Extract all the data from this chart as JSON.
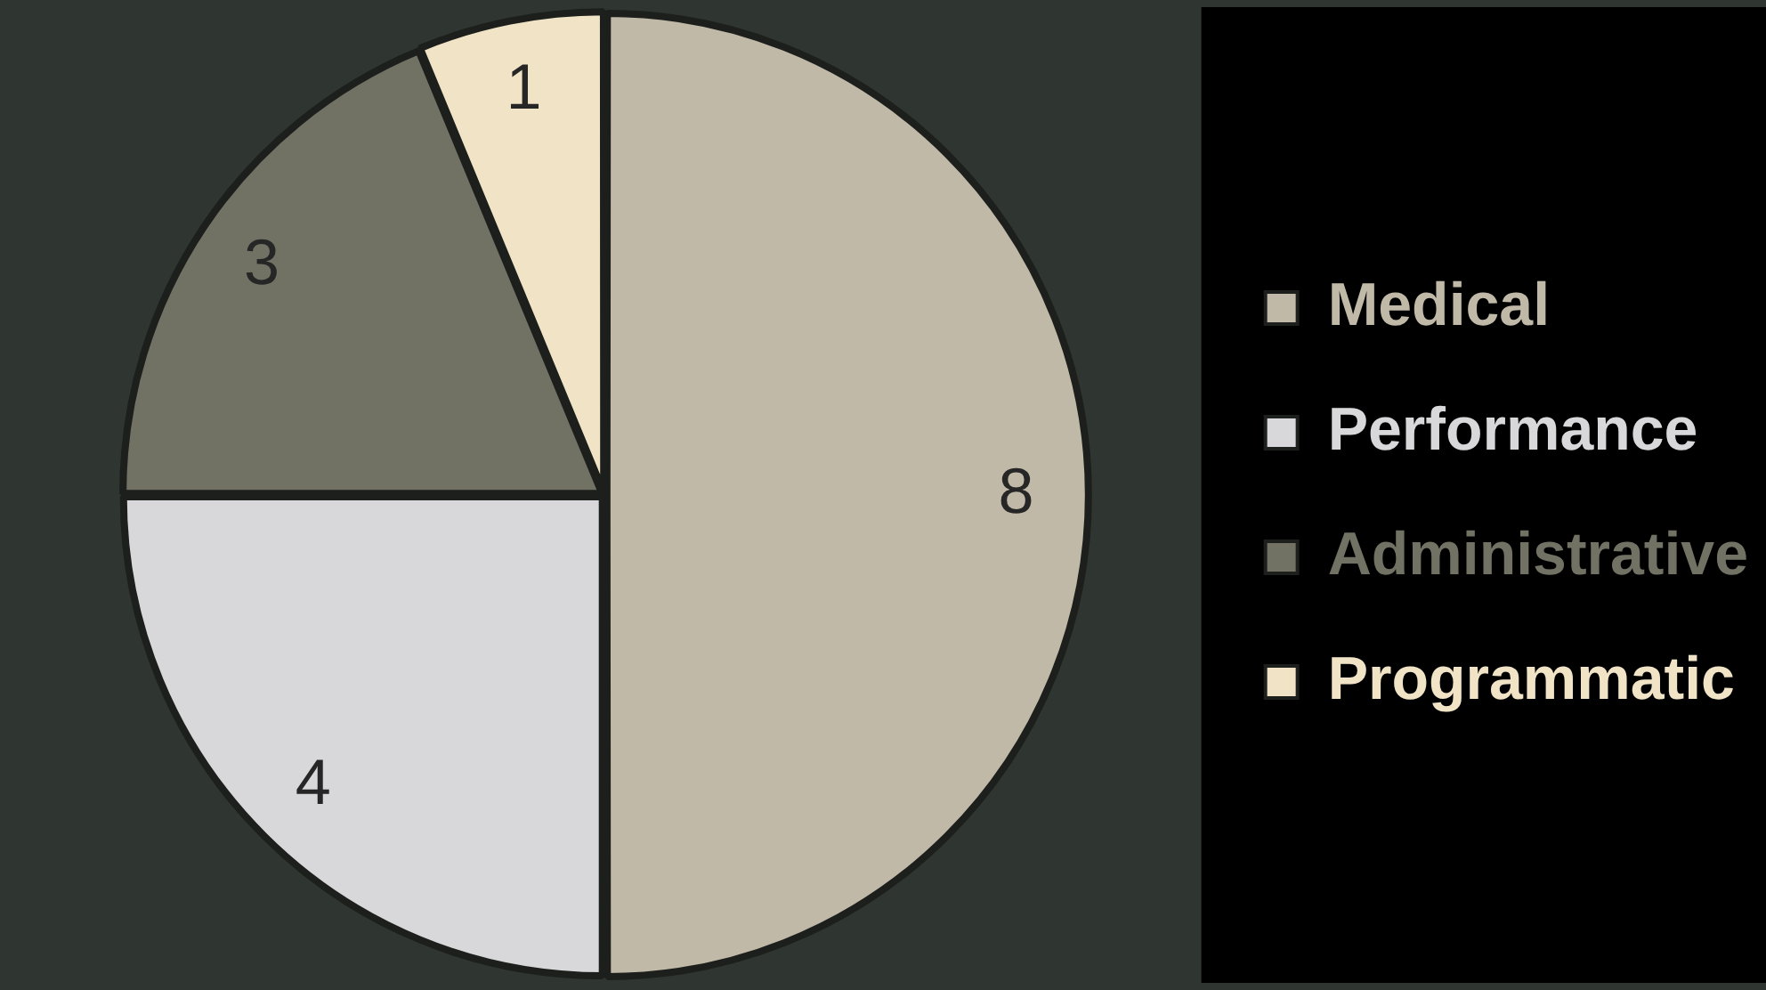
{
  "chart_data": {
    "type": "pie",
    "categories": [
      "Medical",
      "Performance",
      "Administrative",
      "Programmatic"
    ],
    "values": [
      8,
      4,
      3,
      1
    ],
    "colors": [
      "#c0b9a7",
      "#d8d8da",
      "#717264",
      "#f1e4c6"
    ],
    "legend": "right",
    "data_labels": true
  }
}
